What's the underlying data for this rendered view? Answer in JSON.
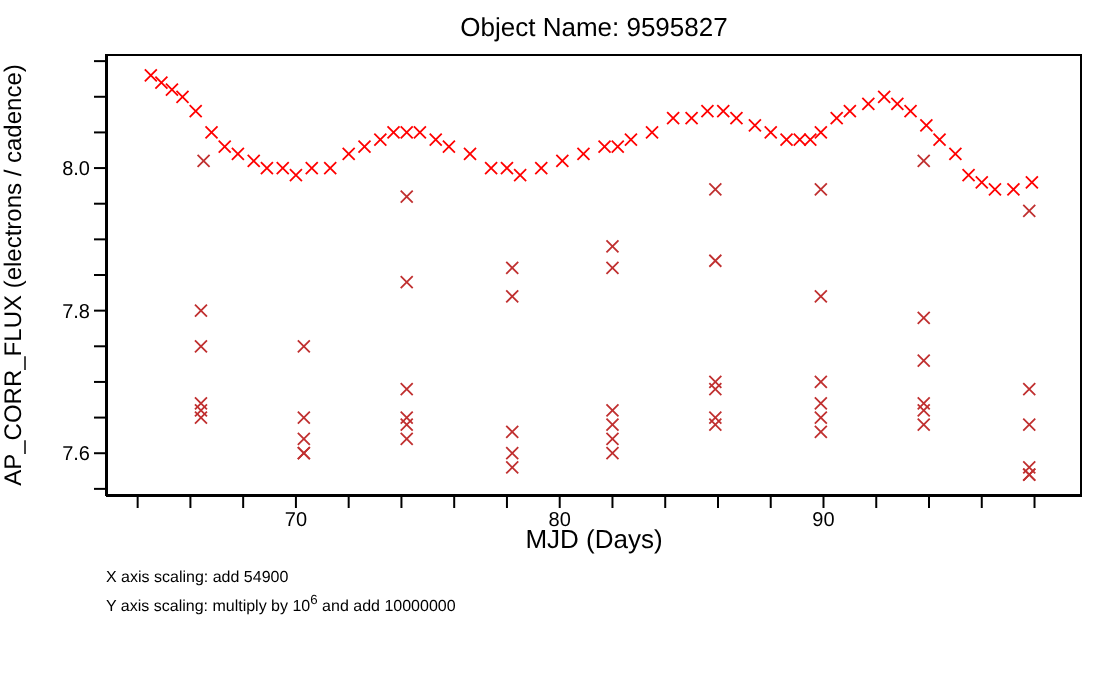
{
  "chart_data": {
    "type": "scatter",
    "title": "Object Name:  9595827",
    "xlabel": "MJD (Days)",
    "ylabel": "AP_CORR_FLUX (electrons / cadence)",
    "annotations": [
      "X axis scaling: add 54900",
      "Y axis scaling: multiply by 10$^{6}$ and add 10000000"
    ],
    "marker": "cross",
    "legend": false,
    "grid": false,
    "xlim": [
      62.8,
      99.8
    ],
    "ylim": [
      7.54,
      8.16
    ],
    "xticks": [
      {
        "value": 64,
        "label": null
      },
      {
        "value": 66,
        "label": null
      },
      {
        "value": 68,
        "label": null
      },
      70,
      {
        "value": 72,
        "label": null
      },
      {
        "value": 74,
        "label": null
      },
      {
        "value": 76,
        "label": null
      },
      {
        "value": 78,
        "label": null
      },
      80,
      {
        "value": 82,
        "label": null
      },
      {
        "value": 84,
        "label": null
      },
      {
        "value": 86,
        "label": null
      },
      {
        "value": 88,
        "label": null
      },
      90,
      {
        "value": 92,
        "label": null
      },
      {
        "value": 94,
        "label": null
      },
      {
        "value": 96,
        "label": null
      },
      {
        "value": 98,
        "label": null
      }
    ],
    "yticks": [
      {
        "value": 7.55,
        "label": null
      },
      7.6,
      {
        "value": 7.65,
        "label": null
      },
      {
        "value": 7.7,
        "label": null
      },
      {
        "value": 7.75,
        "label": null
      },
      7.8,
      {
        "value": 7.85,
        "label": null
      },
      {
        "value": 7.9,
        "label": null
      },
      {
        "value": 7.95,
        "label": null
      },
      {
        "value": 8,
        "label": "8.0"
      },
      {
        "value": 8.05,
        "label": null
      },
      {
        "value": 8.1,
        "label": null
      },
      {
        "value": 8.15,
        "label": null
      }
    ],
    "series": [
      {
        "color": "#ff0000",
        "x": [
          64.5,
          64.9,
          65.3,
          65.7,
          66.2,
          66.8,
          67.3,
          67.8,
          68.4,
          68.9,
          69.5,
          70.0,
          70.6,
          71.3,
          72.0,
          72.6,
          73.2,
          73.7,
          74.2,
          74.7,
          75.3,
          75.8,
          76.6,
          77.4,
          78.0,
          78.5,
          79.3,
          80.1,
          80.9,
          81.7,
          82.2,
          82.7,
          83.5,
          84.3,
          85.0,
          85.6,
          86.2,
          86.7,
          87.4,
          88.0,
          88.6,
          89.1,
          89.5,
          89.9,
          90.5,
          91.0,
          91.7,
          92.3,
          92.8,
          93.3,
          93.9,
          94.4,
          95.0,
          95.5,
          96.0,
          96.5,
          97.2,
          97.9
        ],
        "values": [
          8.13,
          8.12,
          8.11,
          8.1,
          8.08,
          8.05,
          8.03,
          8.02,
          8.01,
          8.0,
          8.0,
          7.99,
          8.0,
          8.0,
          8.02,
          8.03,
          8.04,
          8.05,
          8.05,
          8.05,
          8.04,
          8.03,
          8.02,
          8.0,
          8.0,
          7.99,
          8.0,
          8.01,
          8.02,
          8.03,
          8.03,
          8.04,
          8.05,
          8.07,
          8.07,
          8.08,
          8.08,
          8.07,
          8.06,
          8.05,
          8.04,
          8.04,
          8.04,
          8.05,
          8.07,
          8.08,
          8.09,
          8.1,
          8.09,
          8.08,
          8.06,
          8.04,
          8.02,
          7.99,
          7.98,
          7.97,
          7.97,
          7.98
        ]
      },
      {
        "color": "#c03030",
        "x": [
          66.4,
          66.4,
          66.4,
          66.4,
          66.4,
          66.5,
          70.3,
          70.3,
          70.3,
          70.3,
          70.3,
          74.2,
          74.2,
          74.2,
          74.2,
          74.2,
          74.2,
          78.2,
          78.2,
          78.2,
          78.2,
          78.2,
          82.0,
          82.0,
          82.0,
          82.0,
          82.0,
          82.0,
          85.9,
          85.9,
          85.9,
          85.9,
          85.9,
          85.9,
          89.9,
          89.9,
          89.9,
          89.9,
          89.9,
          89.9,
          93.8,
          93.8,
          93.8,
          93.8,
          93.8,
          93.8,
          97.8,
          97.8,
          97.8,
          97.8,
          97.8,
          97.8
        ],
        "values": [
          7.8,
          7.75,
          7.67,
          7.66,
          7.65,
          8.01,
          7.75,
          7.65,
          7.62,
          7.6,
          7.6,
          7.96,
          7.84,
          7.69,
          7.65,
          7.64,
          7.62,
          7.86,
          7.82,
          7.63,
          7.6,
          7.58,
          7.89,
          7.86,
          7.66,
          7.64,
          7.62,
          7.6,
          7.97,
          7.87,
          7.7,
          7.69,
          7.65,
          7.64,
          7.97,
          7.82,
          7.7,
          7.67,
          7.65,
          7.63,
          8.01,
          7.79,
          7.73,
          7.67,
          7.66,
          7.64,
          7.94,
          7.69,
          7.64,
          7.58,
          7.57,
          7.57
        ]
      }
    ]
  }
}
